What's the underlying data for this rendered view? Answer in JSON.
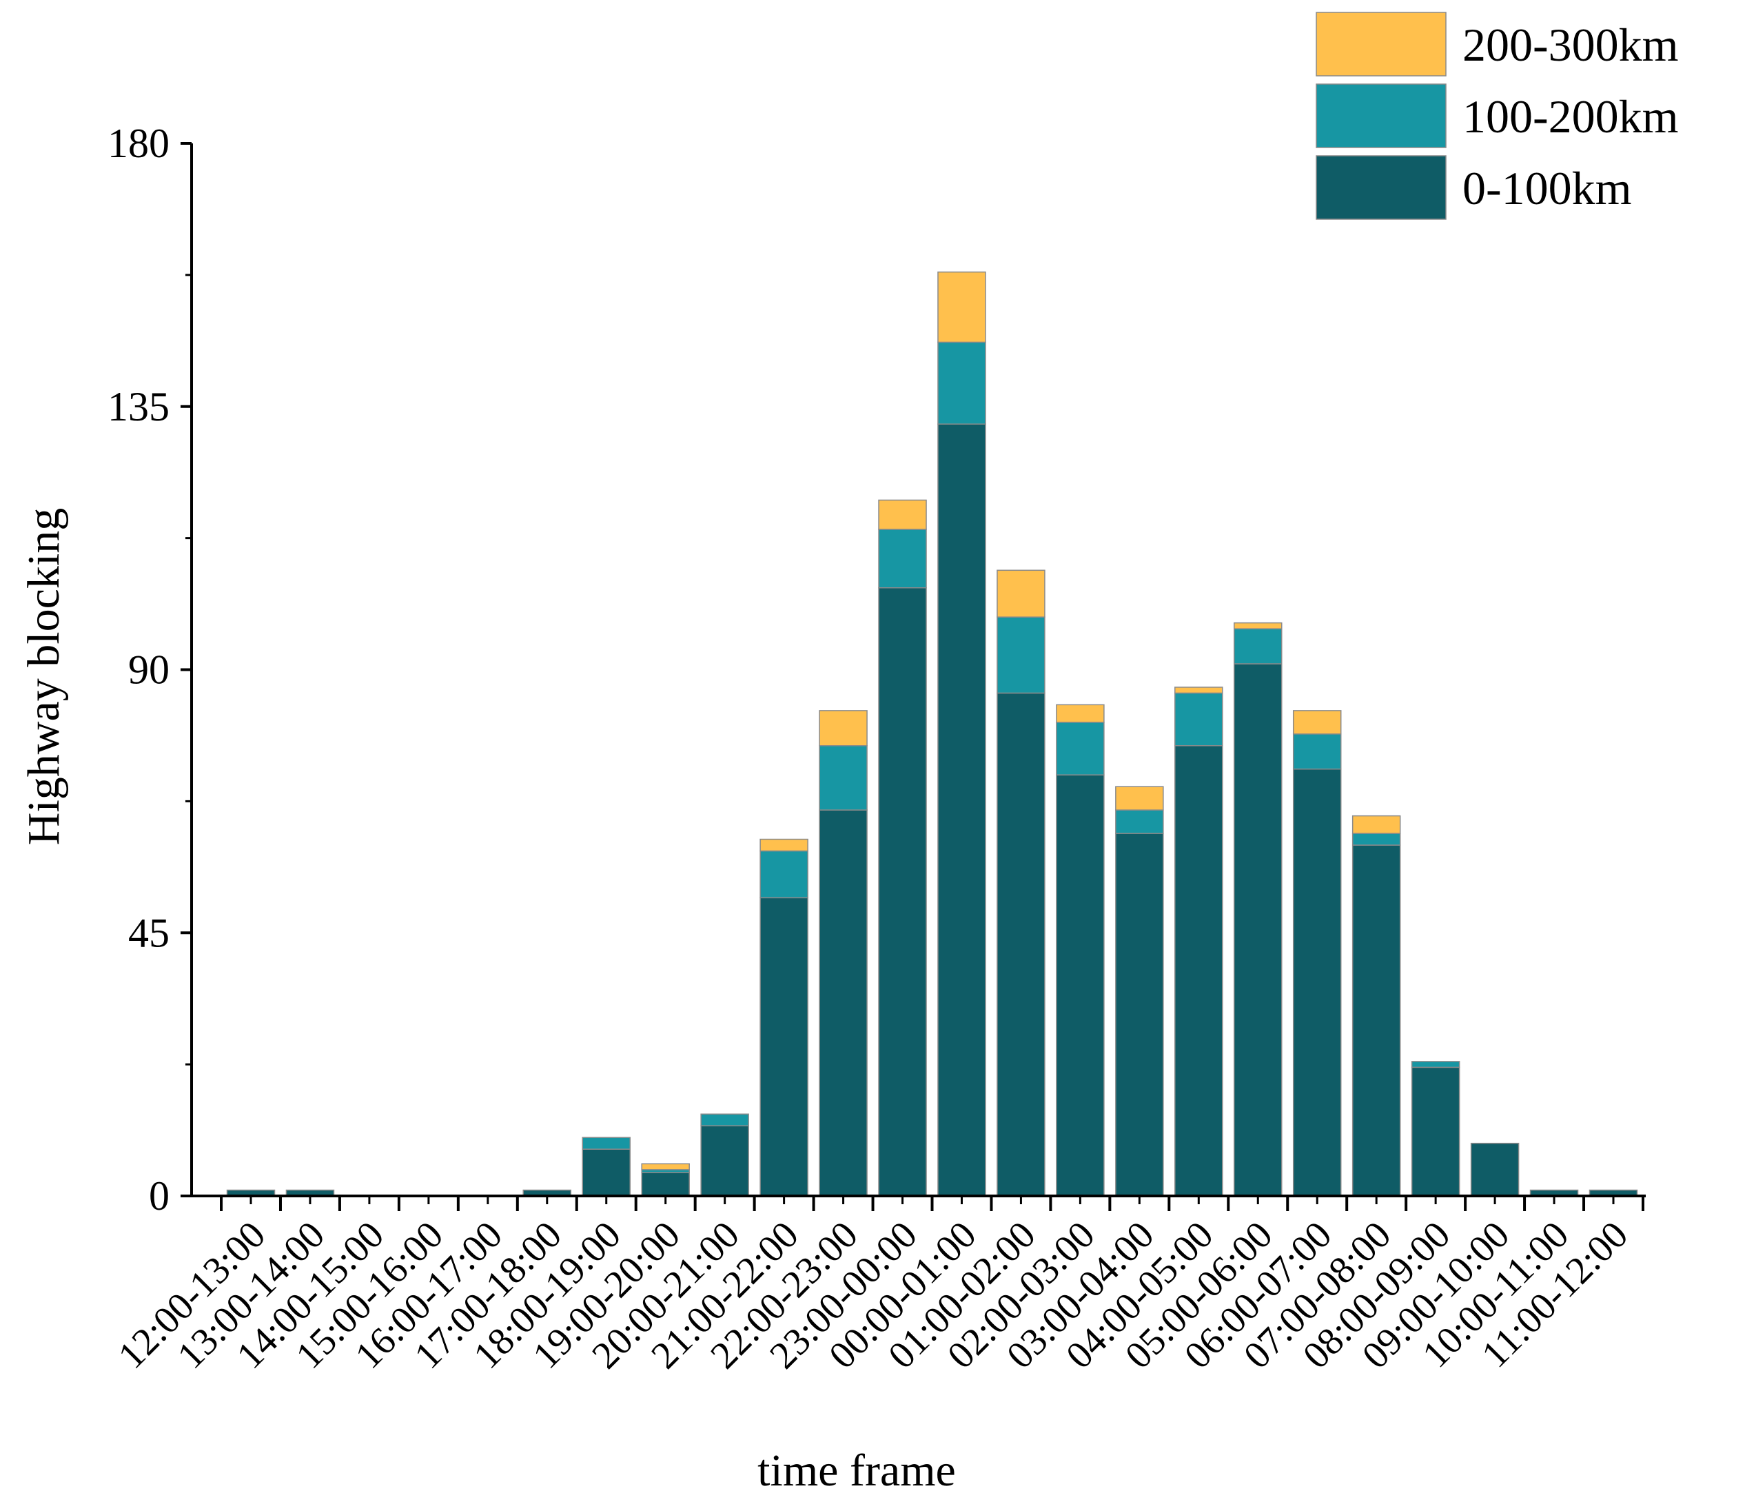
{
  "chart_data": {
    "type": "bar",
    "stacked": true,
    "title": "",
    "xlabel": "time frame",
    "ylabel": "Highway blocking",
    "ylim": [
      0,
      180
    ],
    "yticks": [
      0,
      45,
      90,
      135,
      180
    ],
    "categories": [
      "12:00-13:00",
      "13:00-14:00",
      "14:00-15:00",
      "15:00-16:00",
      "16:00-17:00",
      "17:00-18:00",
      "18:00-19:00",
      "19:00-20:00",
      "20:00-21:00",
      "21:00-22:00",
      "22:00-23:00",
      "23:00-00:00",
      "00:00-01:00",
      "01:00-02:00",
      "02:00-03:00",
      "03:00-04:00",
      "04:00-05:00",
      "05:00-06:00",
      "06:00-07:00",
      "07:00-08:00",
      "08:00-09:00",
      "09:00-10:00",
      "10:00-11:00",
      "11:00-12:00"
    ],
    "series": [
      {
        "name": "0-100km",
        "color": "#0f5c66",
        "values": [
          1,
          1,
          0,
          0,
          0,
          1,
          8,
          4,
          12,
          51,
          66,
          104,
          132,
          86,
          72,
          62,
          77,
          91,
          73,
          60,
          22,
          9,
          1,
          1
        ]
      },
      {
        "name": "100-200km",
        "color": "#1796a3",
        "values": [
          0,
          0,
          0,
          0,
          0,
          0,
          2,
          0.5,
          2,
          8,
          11,
          10,
          14,
          13,
          9,
          4,
          9,
          6,
          6,
          2,
          1,
          0,
          0,
          0
        ]
      },
      {
        "name": "200-300km",
        "color": "#ffc04d",
        "values": [
          0,
          0,
          0,
          0,
          0,
          0,
          0,
          1,
          0,
          2,
          6,
          5,
          12,
          8,
          3,
          4,
          1,
          1,
          4,
          3,
          0,
          0,
          0,
          0
        ]
      }
    ],
    "legend_order": [
      "200-300km",
      "100-200km",
      "0-100km"
    ],
    "legend_position": "top-right"
  }
}
